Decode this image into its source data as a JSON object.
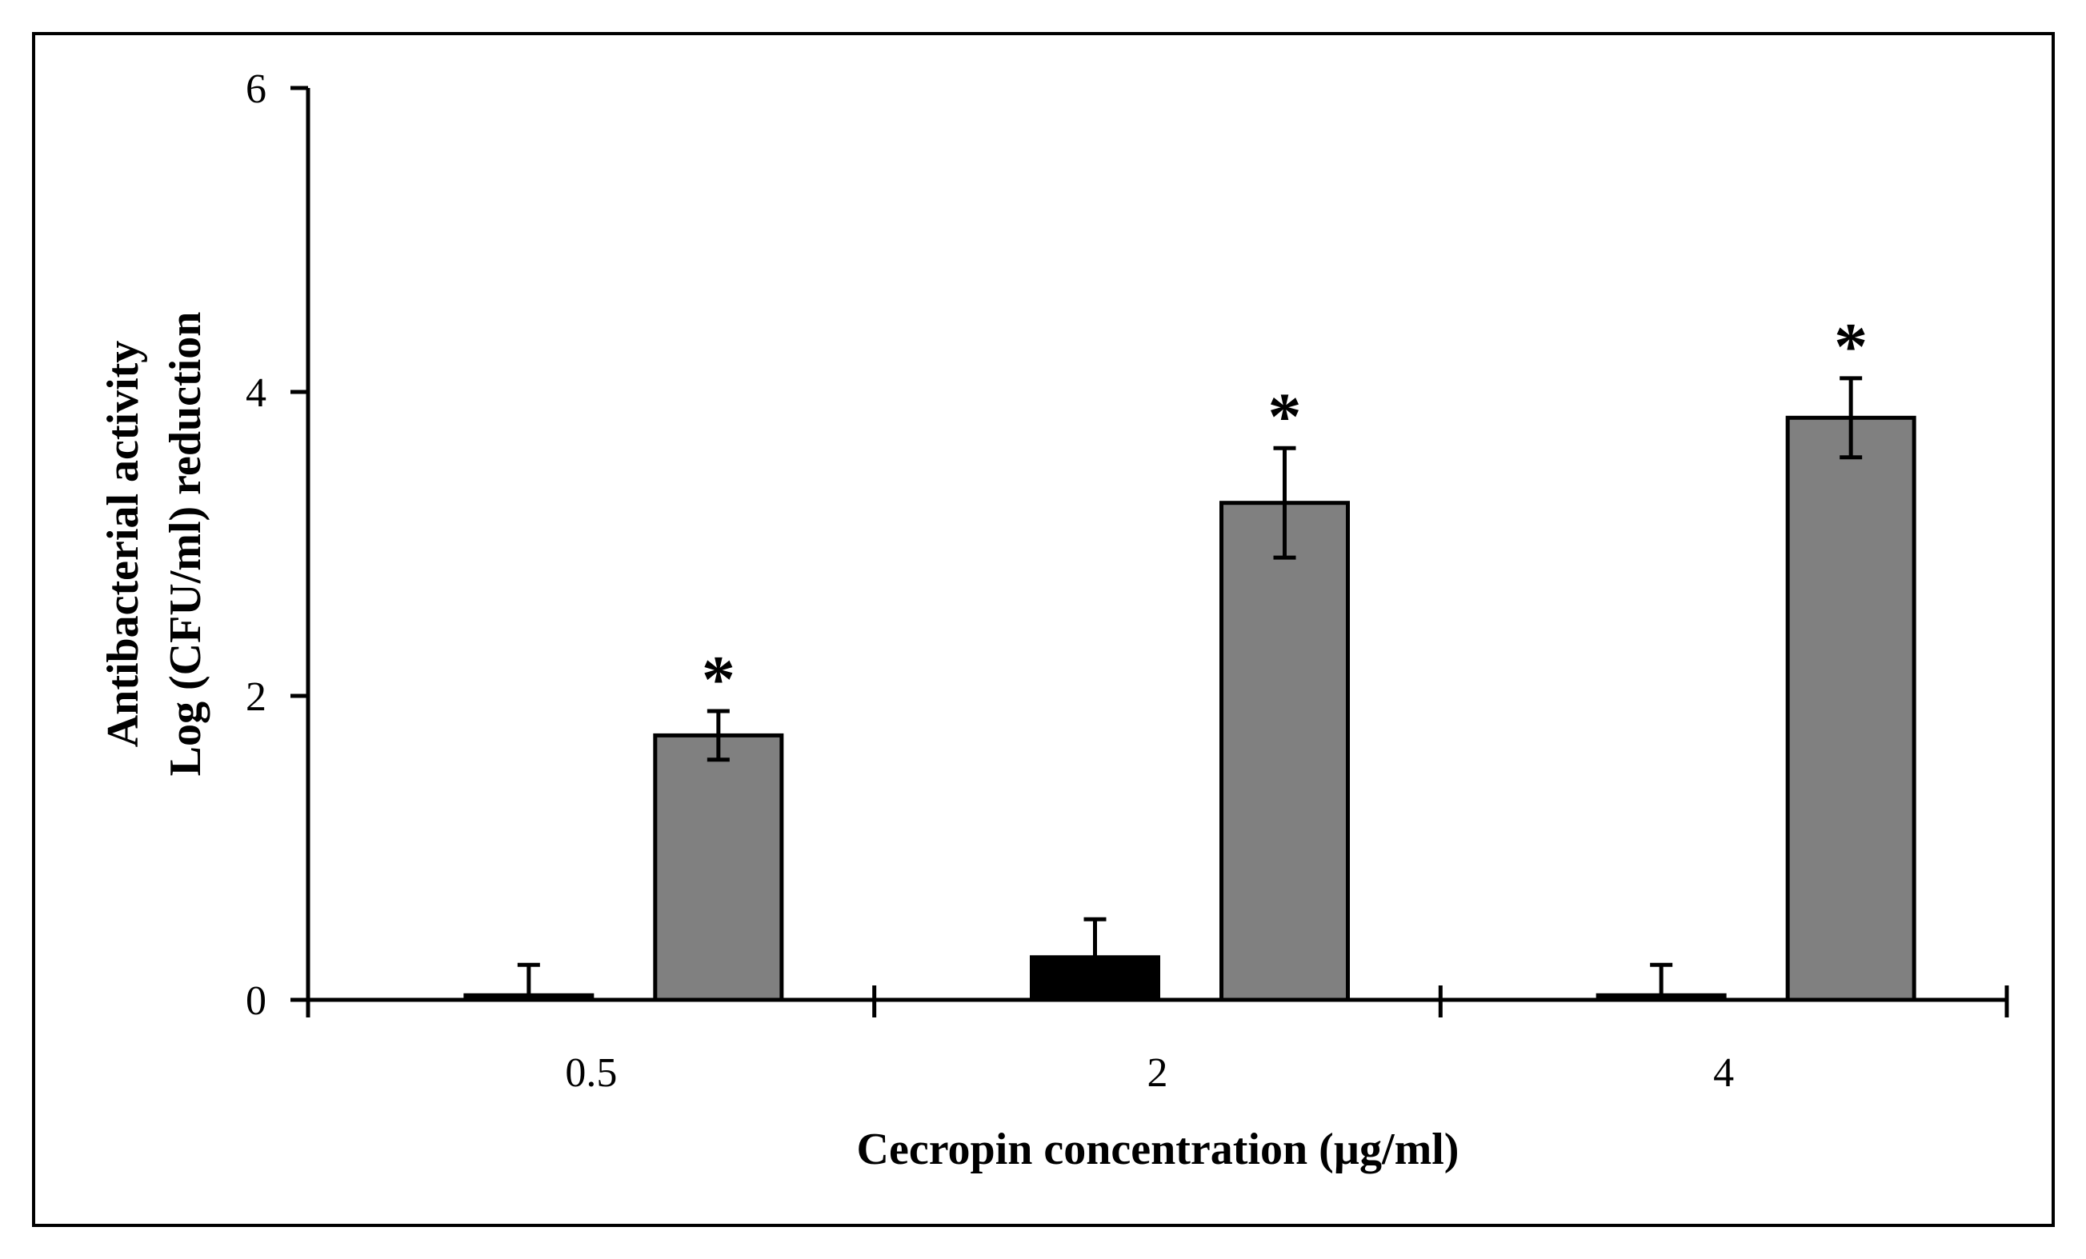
{
  "chart_data": {
    "type": "bar",
    "title": "",
    "xlabel": "Cecropin concentration (µg/ml)",
    "ylabel_lines": [
      "Antibacterial activity",
      "Log (CFU/ml) reduction"
    ],
    "categories": [
      "0.5",
      "2",
      "4"
    ],
    "ylim": [
      0,
      6
    ],
    "yticks": [
      0,
      2,
      4,
      6
    ],
    "series": [
      {
        "name": "series-1",
        "color": "#000000",
        "values": [
          0.03,
          0.28,
          0.03
        ],
        "errors": [
          0.2,
          0.25,
          0.2
        ],
        "significance": [
          "",
          "",
          ""
        ]
      },
      {
        "name": "series-2",
        "color": "#808080",
        "values": [
          1.74,
          3.27,
          3.83
        ],
        "errors": [
          0.16,
          0.36,
          0.26
        ],
        "significance": [
          "*",
          "*",
          "*"
        ]
      }
    ]
  }
}
